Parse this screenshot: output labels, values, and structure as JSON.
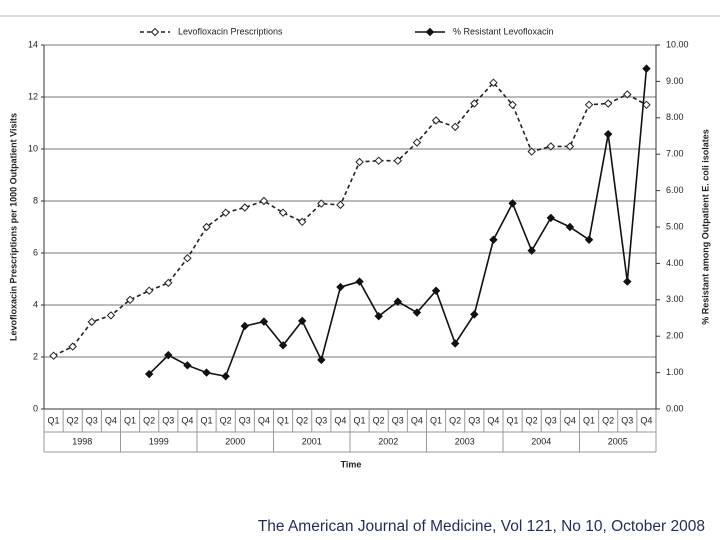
{
  "chart_data": {
    "type": "line",
    "x_label": "Time",
    "y_label": "Levofloxacin Prescriptions per 1000 Outpatient Visits",
    "y2_label": "% Resistant among Outpatient E. coli isolates",
    "categories": [
      "Q1",
      "Q2",
      "Q3",
      "Q4",
      "Q1",
      "Q2",
      "Q3",
      "Q4",
      "Q1",
      "Q2",
      "Q3",
      "Q4",
      "Q1",
      "Q2",
      "Q3",
      "Q4",
      "Q1",
      "Q2",
      "Q3",
      "Q4",
      "Q1",
      "Q2",
      "Q3",
      "Q4",
      "Q1",
      "Q2",
      "Q3",
      "Q4",
      "Q1",
      "Q2",
      "Q3",
      "Q4"
    ],
    "year_groups": [
      "1998",
      "1999",
      "2000",
      "2001",
      "2002",
      "2003",
      "2004",
      "2005"
    ],
    "series": [
      {
        "name": "Levofloxacin Prescriptions",
        "color": "#222222",
        "line_style": "dashed",
        "marker_fill": "#ffffff",
        "values": [
          2.05,
          2.4,
          3.35,
          3.6,
          4.2,
          4.55,
          4.85,
          5.8,
          7.0,
          7.55,
          7.75,
          8.0,
          7.55,
          7.2,
          7.9,
          7.85,
          9.5,
          9.55,
          9.55,
          10.25,
          11.1,
          10.85,
          11.75,
          12.55,
          11.7,
          9.9,
          10.1,
          10.1,
          11.7,
          11.75,
          12.1,
          11.7
        ]
      },
      {
        "name": "% Resistant Levofloxacin",
        "color": "#111111",
        "line_style": "solid",
        "marker_fill": "#111111",
        "axis": "y2",
        "values": [
          null,
          null,
          null,
          null,
          null,
          0.96,
          1.48,
          1.2,
          1.0,
          0.9,
          2.28,
          2.4,
          1.75,
          2.42,
          1.35,
          3.35,
          3.5,
          2.55,
          2.95,
          2.65,
          3.25,
          1.8,
          2.6,
          4.65,
          5.65,
          4.35,
          5.25,
          5.0,
          4.65,
          7.55,
          3.5,
          9.35
        ]
      }
    ],
    "ylim": [
      0,
      14
    ],
    "yticks": [
      0,
      2,
      4,
      6,
      8,
      10,
      12,
      14
    ],
    "y2lim": [
      0,
      10
    ],
    "y2ticks": [
      {
        "value": 0,
        "label": "0.00"
      },
      {
        "value": 1,
        "label": "1.00"
      },
      {
        "value": 2,
        "label": "2.00"
      },
      {
        "value": 3,
        "label": "3.00"
      },
      {
        "value": 4,
        "label": "4.00"
      },
      {
        "value": 5,
        "label": "5.00"
      },
      {
        "value": 6,
        "label": "6.00"
      },
      {
        "value": 7,
        "label": "7.00"
      },
      {
        "value": 8,
        "label": "8.00"
      },
      {
        "value": 9,
        "label": "9.00"
      },
      {
        "value": 10,
        "label": "10.00"
      }
    ],
    "grid": true,
    "legend": "top",
    "source": "The American Journal of Medicine, Vol 121, No 10, October 2008"
  }
}
